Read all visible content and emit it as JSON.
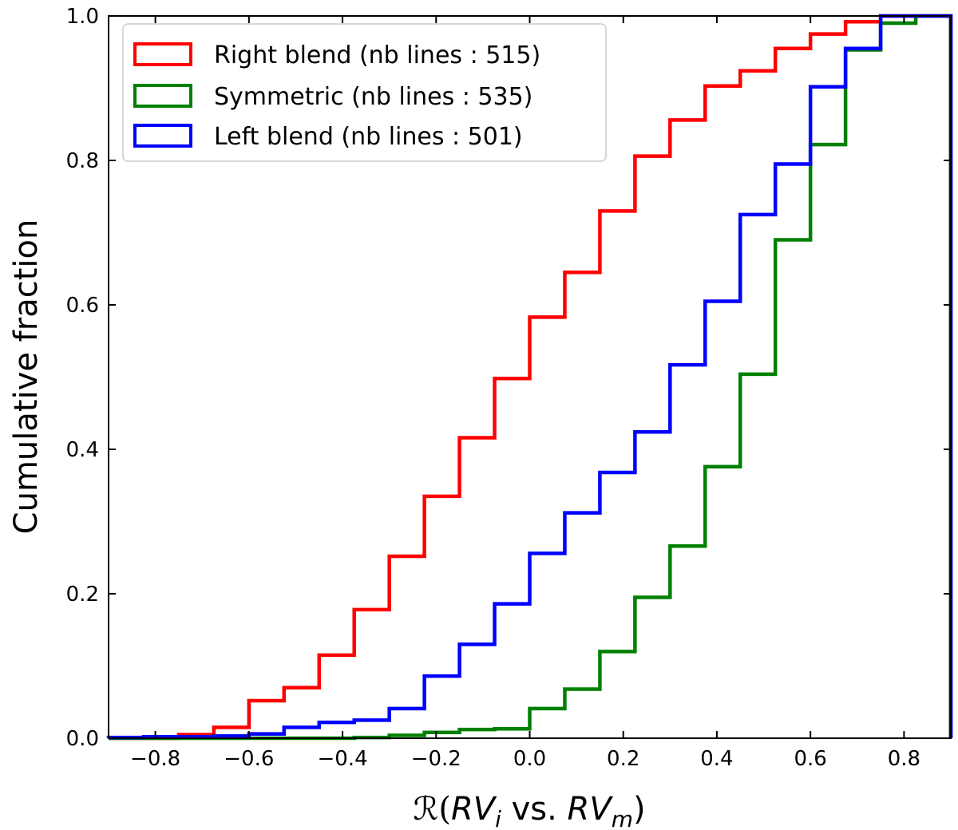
{
  "chart_data": {
    "type": "step",
    "title": "",
    "xlabel_parts": {
      "prefix": "ℛ(",
      "a": "RV",
      "a_sub": "i",
      "middle": " vs. ",
      "b": "RV",
      "b_sub": "m",
      "suffix": ")"
    },
    "ylabel": "Cumulative fraction",
    "xlim": [
      -0.9,
      0.9
    ],
    "ylim": [
      0.0,
      1.0
    ],
    "x_ticks": [
      -0.8,
      -0.6,
      -0.4,
      -0.2,
      0.0,
      0.2,
      0.4,
      0.6,
      0.8
    ],
    "x_tick_labels": [
      "−0.8",
      "−0.6",
      "−0.4",
      "−0.2",
      "0.0",
      "0.2",
      "0.4",
      "0.6",
      "0.8"
    ],
    "y_ticks": [
      0.0,
      0.2,
      0.4,
      0.6,
      0.8,
      1.0
    ],
    "y_tick_labels": [
      "0.0",
      "0.2",
      "0.4",
      "0.6",
      "0.8",
      "1.0"
    ],
    "grid": false,
    "legend_position": "top-left",
    "bin_edges": [
      -0.9,
      -0.825,
      -0.75,
      -0.675,
      -0.6,
      -0.525,
      -0.45,
      -0.375,
      -0.3,
      -0.225,
      -0.15,
      -0.075,
      0.0,
      0.075,
      0.15,
      0.225,
      0.3,
      0.375,
      0.45,
      0.525,
      0.6,
      0.675,
      0.75,
      0.825,
      0.9
    ],
    "series": [
      {
        "name": "Right blend (nb lines : 515)",
        "color": "#ff0000",
        "values": [
          0.0,
          0.0,
          0.005,
          0.015,
          0.052,
          0.07,
          0.115,
          0.178,
          0.252,
          0.335,
          0.416,
          0.498,
          0.583,
          0.645,
          0.73,
          0.806,
          0.856,
          0.903,
          0.924,
          0.955,
          0.975,
          0.992,
          1.0,
          1.0
        ]
      },
      {
        "name": "Symmetric (nb lines : 535)",
        "color": "#008000",
        "values": [
          0.0,
          0.0,
          0.0,
          0.0,
          0.0,
          0.0,
          0.0,
          0.001,
          0.004,
          0.008,
          0.012,
          0.013,
          0.041,
          0.068,
          0.12,
          0.195,
          0.266,
          0.376,
          0.504,
          0.69,
          0.822,
          0.953,
          0.99,
          1.0
        ]
      },
      {
        "name": "Left blend (nb lines : 501)",
        "color": "#0000ff",
        "values": [
          0.001,
          0.002,
          0.002,
          0.003,
          0.006,
          0.015,
          0.022,
          0.025,
          0.041,
          0.086,
          0.13,
          0.186,
          0.256,
          0.312,
          0.368,
          0.424,
          0.517,
          0.605,
          0.725,
          0.795,
          0.902,
          0.955,
          1.0,
          1.0
        ]
      }
    ]
  }
}
